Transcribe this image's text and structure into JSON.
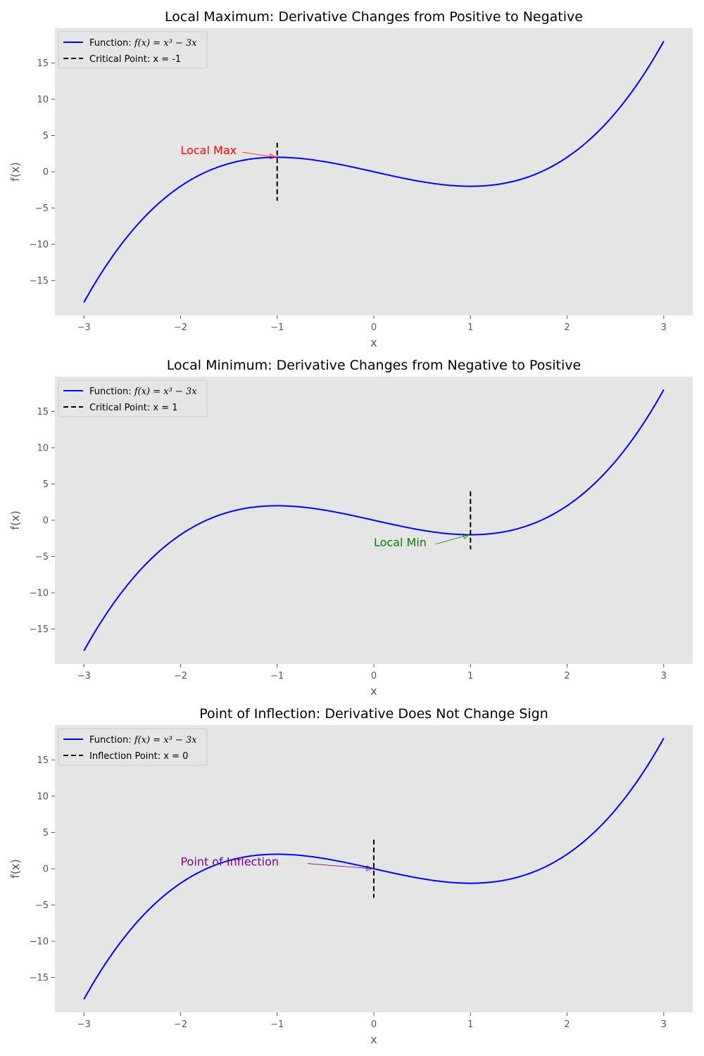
{
  "chart_data": [
    {
      "type": "line",
      "title": "Local Maximum: Derivative Changes from Positive to Negative",
      "xlabel": "x",
      "ylabel": "f(x)",
      "xlim": [
        -3.3,
        3.3
      ],
      "ylim": [
        -19.8,
        19.8
      ],
      "xticks": [
        -3,
        -2,
        -1,
        0,
        1,
        2,
        3
      ],
      "yticks": [
        -15,
        -10,
        -5,
        0,
        5,
        10,
        15
      ],
      "xtick_labels": [
        "−3",
        "−2",
        "−1",
        "0",
        "1",
        "2",
        "3"
      ],
      "ytick_labels": [
        "−15",
        "−10",
        "−5",
        "0",
        "5",
        "10",
        "15"
      ],
      "grid": false,
      "legend_position": "top-left",
      "function": {
        "expression": "x^3 - 3x",
        "x_range": [
          -3,
          3
        ],
        "color": "#0000ff"
      },
      "series": [
        {
          "name": "Function: f(x) = x³ − 3x",
          "style": "solid",
          "color": "#0000ff"
        },
        {
          "name": "Critical Point: x = -1",
          "style": "dashed",
          "color": "#000000"
        }
      ],
      "vline": {
        "x": -1,
        "y_range": [
          -4,
          4
        ],
        "color": "#000000"
      },
      "annotation": {
        "text": "Local Max",
        "point": [
          -1,
          2
        ],
        "text_at": [
          -2,
          3
        ],
        "color": "#ff0000"
      }
    },
    {
      "type": "line",
      "title": "Local Minimum: Derivative Changes from Negative to Positive",
      "xlabel": "x",
      "ylabel": "f(x)",
      "xlim": [
        -3.3,
        3.3
      ],
      "ylim": [
        -19.8,
        19.8
      ],
      "xticks": [
        -3,
        -2,
        -1,
        0,
        1,
        2,
        3
      ],
      "yticks": [
        -15,
        -10,
        -5,
        0,
        5,
        10,
        15
      ],
      "xtick_labels": [
        "−3",
        "−2",
        "−1",
        "0",
        "1",
        "2",
        "3"
      ],
      "ytick_labels": [
        "−15",
        "−10",
        "−5",
        "0",
        "5",
        "10",
        "15"
      ],
      "grid": false,
      "legend_position": "top-left",
      "function": {
        "expression": "x^3 - 3x",
        "x_range": [
          -3,
          3
        ],
        "color": "#0000ff"
      },
      "series": [
        {
          "name": "Function: f(x) = x³ − 3x",
          "style": "solid",
          "color": "#0000ff"
        },
        {
          "name": "Critical Point: x = 1",
          "style": "dashed",
          "color": "#000000"
        }
      ],
      "vline": {
        "x": 1,
        "y_range": [
          -4,
          4
        ],
        "color": "#000000"
      },
      "annotation": {
        "text": "Local Min",
        "point": [
          1,
          -2
        ],
        "text_at": [
          0,
          -3
        ],
        "color": "#008000"
      }
    },
    {
      "type": "line",
      "title": "Point of Inflection: Derivative Does Not Change Sign",
      "xlabel": "x",
      "ylabel": "f(x)",
      "xlim": [
        -3.3,
        3.3
      ],
      "ylim": [
        -19.8,
        19.8
      ],
      "xticks": [
        -3,
        -2,
        -1,
        0,
        1,
        2,
        3
      ],
      "yticks": [
        -15,
        -10,
        -5,
        0,
        5,
        10,
        15
      ],
      "xtick_labels": [
        "−3",
        "−2",
        "−1",
        "0",
        "1",
        "2",
        "3"
      ],
      "ytick_labels": [
        "−15",
        "−10",
        "−5",
        "0",
        "5",
        "10",
        "15"
      ],
      "grid": false,
      "legend_position": "top-left",
      "function": {
        "expression": "x^3 - 3x",
        "x_range": [
          -3,
          3
        ],
        "color": "#0000ff"
      },
      "series": [
        {
          "name": "Function: f(x) = x³ − 3x",
          "style": "solid",
          "color": "#0000ff"
        },
        {
          "name": "Inflection Point: x = 0",
          "style": "dashed",
          "color": "#000000"
        }
      ],
      "vline": {
        "x": 0,
        "y_range": [
          -4,
          4
        ],
        "color": "#000000"
      },
      "annotation": {
        "text": "Point of Inflection",
        "point": [
          0,
          0
        ],
        "text_at": [
          -2,
          1
        ],
        "color": "#800080"
      }
    }
  ]
}
